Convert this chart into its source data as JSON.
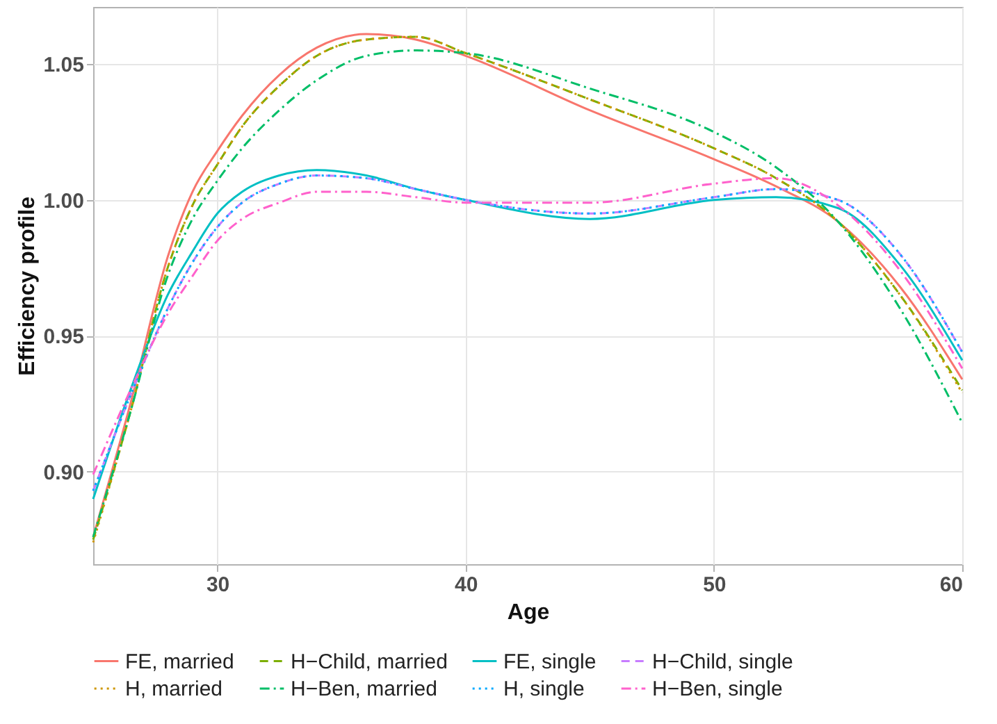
{
  "chart_data": {
    "type": "line",
    "xlabel": "Age",
    "ylabel": "Efficiency profile",
    "x": [
      25,
      26.5,
      28,
      29,
      30,
      31,
      32.5,
      34,
      36,
      38,
      40,
      45,
      50,
      52.5,
      55,
      57.5,
      60
    ],
    "series": [
      {
        "name": "FE, married",
        "color": "#f8766d",
        "line_style": "solid",
        "values": [
          0.876,
          0.925,
          0.979,
          1.003,
          1.018,
          1.031,
          1.046,
          1.056,
          1.061,
          1.059,
          1.053,
          1.033,
          1.015,
          1.005,
          0.992,
          0.968,
          0.934
        ]
      },
      {
        "name": "H−Child, married",
        "color": "#7cae00",
        "line_style": "dashed",
        "values": [
          0.875,
          0.922,
          0.975,
          0.998,
          1.013,
          1.027,
          1.042,
          1.053,
          1.059,
          1.06,
          1.054,
          1.037,
          1.019,
          1.008,
          0.992,
          0.965,
          0.93
        ]
      },
      {
        "name": "FE, single",
        "color": "#00bfc4",
        "line_style": "solid",
        "values": [
          0.89,
          0.93,
          0.965,
          0.981,
          0.995,
          1.003,
          1.009,
          1.011,
          1.009,
          1.004,
          1.0,
          0.993,
          1.0,
          1.001,
          0.997,
          0.976,
          0.941
        ]
      },
      {
        "name": "H−Child, single",
        "color": "#c77cff",
        "line_style": "dashed",
        "values": [
          0.893,
          0.928,
          0.96,
          0.977,
          0.99,
          0.999,
          1.006,
          1.009,
          1.008,
          1.004,
          1.0,
          0.995,
          1.001,
          1.004,
          1.0,
          0.98,
          0.944
        ]
      },
      {
        "name": "H, married",
        "color": "#cd9600",
        "line_style": "dotted",
        "values": [
          0.874,
          0.922,
          0.975,
          0.998,
          1.013,
          1.027,
          1.042,
          1.053,
          1.059,
          1.06,
          1.054,
          1.037,
          1.019,
          1.008,
          0.992,
          0.965,
          0.929
        ]
      },
      {
        "name": "H−Ben, married",
        "color": "#00be67",
        "line_style": "dashdot",
        "values": [
          0.876,
          0.922,
          0.972,
          0.993,
          1.007,
          1.019,
          1.033,
          1.044,
          1.053,
          1.055,
          1.054,
          1.041,
          1.025,
          1.012,
          0.992,
          0.96,
          0.918
        ]
      },
      {
        "name": "H, single",
        "color": "#00a9ff",
        "line_style": "dotted",
        "values": [
          0.893,
          0.928,
          0.96,
          0.977,
          0.99,
          0.999,
          1.006,
          1.009,
          1.008,
          1.004,
          1.0,
          0.995,
          1.001,
          1.004,
          1.0,
          0.98,
          0.944
        ]
      },
      {
        "name": "H−Ben, single",
        "color": "#ff61cc",
        "line_style": "dashdot",
        "values": [
          0.899,
          0.93,
          0.958,
          0.972,
          0.985,
          0.993,
          0.999,
          1.003,
          1.003,
          1.001,
          0.999,
          0.999,
          1.006,
          1.008,
          0.998,
          0.974,
          0.938
        ]
      }
    ],
    "xlim": [
      25,
      60
    ],
    "xticks": [
      30,
      40,
      50,
      60
    ],
    "ylim": [
      0.866,
      1.071
    ],
    "yticks": [
      {
        "value": 0.9,
        "label": "0.90"
      },
      {
        "value": 0.95,
        "label": "0.95"
      },
      {
        "value": 1.0,
        "label": "1.00"
      },
      {
        "value": 1.05,
        "label": "1.05"
      }
    ],
    "grid": true,
    "legend": "bottom"
  }
}
